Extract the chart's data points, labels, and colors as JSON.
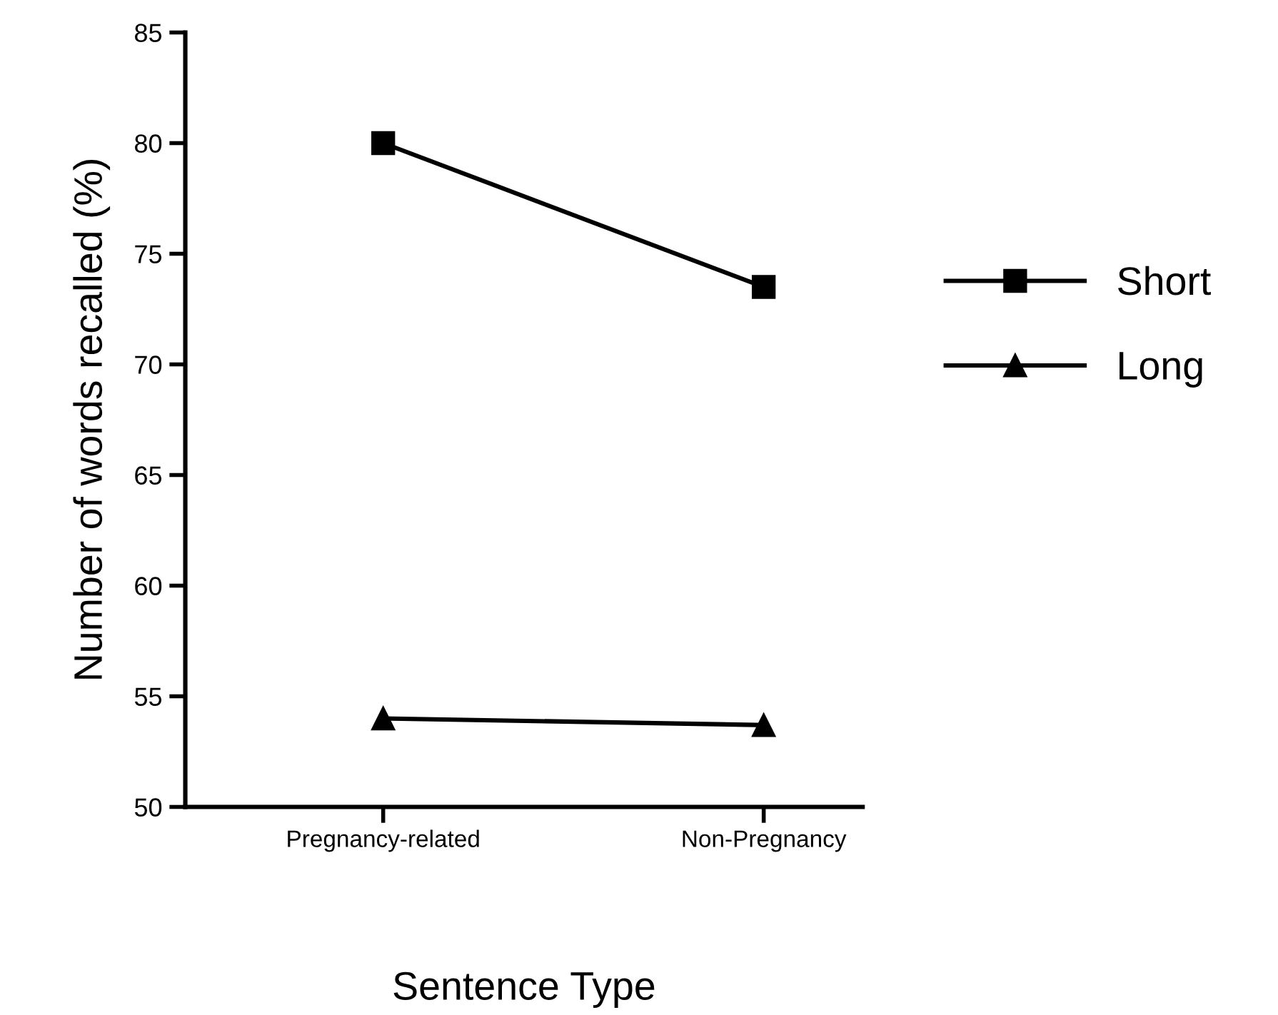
{
  "chart_data": {
    "type": "line",
    "xlabel": "Sentence Type",
    "ylabel": "Number of words recalled (%)",
    "categories": [
      "Pregnancy-related",
      "Non-Pregnancy"
    ],
    "series": [
      {
        "name": "Short",
        "color": "#000000",
        "marker": "square",
        "values": [
          80,
          73.5
        ]
      },
      {
        "name": "Long",
        "color": "#000000",
        "marker": "triangle",
        "values": [
          54,
          53.7
        ]
      }
    ],
    "ylim": [
      50,
      85
    ],
    "yticks": [
      50,
      55,
      60,
      65,
      70,
      75,
      80,
      85
    ],
    "grid": false,
    "legend": "right",
    "line_style": "solid"
  }
}
